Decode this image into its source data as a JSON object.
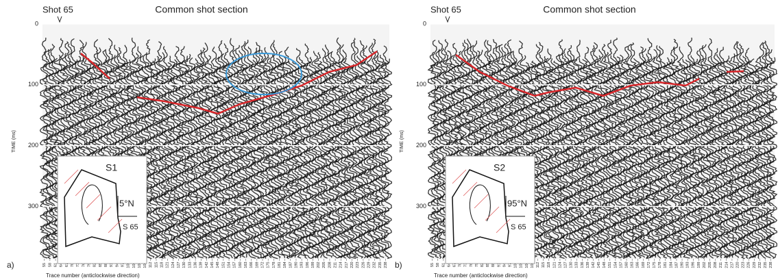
{
  "panels": [
    {
      "letter": "a)",
      "shot": "Shot 65",
      "title": "Common shot section",
      "y_label": "TIME (ms)",
      "x_label": "Trace number (anticlockwise direction)",
      "ylim": [
        0,
        386
      ],
      "yticks": [
        0,
        100,
        200,
        300
      ],
      "xlim": [
        54,
        240
      ],
      "xticks": [
        55,
        58,
        61,
        64,
        67,
        70,
        73,
        76,
        79,
        82,
        85,
        88,
        91,
        94,
        97,
        100,
        103,
        106,
        109,
        112,
        115,
        118,
        121,
        124,
        127,
        130,
        133,
        136,
        139,
        142,
        145,
        148,
        151,
        154,
        157,
        160,
        163,
        166,
        169,
        172,
        175,
        178,
        181,
        184,
        187,
        190,
        193,
        196,
        199,
        202,
        205,
        208,
        211,
        214,
        217,
        220,
        223,
        226,
        229,
        232,
        235,
        238
      ],
      "inset": {
        "label": "S1",
        "direction": "5°N",
        "station": "S 65"
      }
    },
    {
      "letter": "b)",
      "shot": "Shot 65",
      "title": "Common shot section",
      "y_label": "TIME (ms)",
      "x_label": "Trace number (anticlockwise direction)",
      "ylim": [
        0,
        386
      ],
      "yticks": [
        0,
        100,
        200,
        300
      ],
      "xlim": [
        54,
        240
      ],
      "xticks": [
        55,
        58,
        61,
        64,
        67,
        70,
        73,
        76,
        79,
        82,
        85,
        88,
        91,
        94,
        97,
        100,
        103,
        106,
        109,
        112,
        115,
        118,
        121,
        124,
        127,
        130,
        133,
        136,
        139,
        142,
        145,
        148,
        151,
        154,
        157,
        160,
        163,
        166,
        169,
        172,
        175,
        178,
        181,
        184,
        187,
        190,
        193,
        196,
        199,
        202,
        205,
        208,
        211,
        214,
        217,
        220,
        223,
        226,
        229,
        232,
        235,
        238
      ],
      "inset": {
        "label": "S2",
        "direction": "95°N",
        "station": "S 65"
      }
    }
  ]
}
